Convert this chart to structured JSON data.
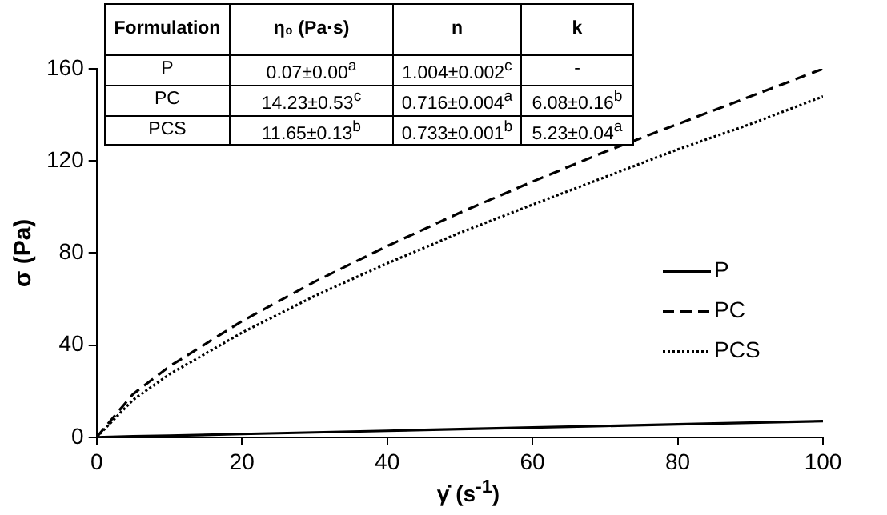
{
  "chart_data": {
    "type": "line",
    "xlabel": "γ̇ (s$^{-1}$)",
    "ylabel": "σ (Pa)",
    "x": [
      0,
      5,
      10,
      20,
      30,
      40,
      50,
      60,
      70,
      80,
      90,
      100
    ],
    "series": [
      {
        "name": "P",
        "color": "#000000",
        "line_style": "solid",
        "values": [
          0,
          0.4,
          0.7,
          1.4,
          2.1,
          2.8,
          3.5,
          4.2,
          4.9,
          5.6,
          6.3,
          7
        ]
      },
      {
        "name": "PC",
        "color": "#000000",
        "line_style": "dashed",
        "values": [
          0,
          18.7,
          30.7,
          50.4,
          67.5,
          83,
          97.5,
          111,
          124,
          136,
          148,
          160
        ]
      },
      {
        "name": "PCS",
        "color": "#000000",
        "line_style": "dotted",
        "values": [
          0,
          16.2,
          27.3,
          45.4,
          61.3,
          75.5,
          88.8,
          101,
          113,
          125,
          136,
          148
        ]
      }
    ],
    "xlim": [
      0,
      100
    ],
    "xticks": [
      0,
      20,
      40,
      60,
      80,
      100
    ],
    "ylim": [
      0,
      160
    ],
    "yticks": [
      0,
      40,
      80,
      120,
      160
    ],
    "grid": false,
    "legend": "right",
    "marker": "none",
    "annotations": [
      "Formulation",
      "η₀ (Pa·s)",
      "n",
      "k",
      "P",
      "0.07±0.00$^{a}$",
      "1.004±0.002$^{c}$",
      "-",
      "PC",
      "14.23±0.53$^{c}$",
      "0.716±0.004$^{a}$",
      "6.08±0.16$^{b}$",
      "PCS",
      "11.65±0.13$^{b}$",
      "0.733±0.001$^{b}$",
      "5.23±0.04$^{a}$"
    ]
  }
}
